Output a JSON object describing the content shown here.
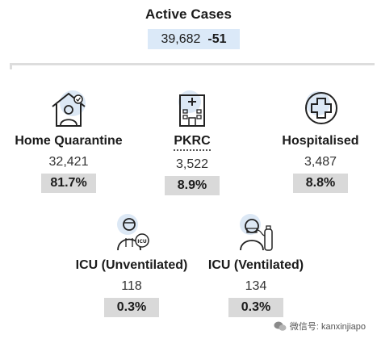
{
  "active": {
    "title": "Active Cases",
    "value": "39,682",
    "change": "-51"
  },
  "categories": [
    {
      "label": "Home Quarantine",
      "count": "32,421",
      "percent": "81.7%",
      "icon": "home-quarantine-icon"
    },
    {
      "label": "PKRC",
      "count": "3,522",
      "percent": "8.9%",
      "icon": "hospital-building-icon"
    },
    {
      "label": "Hospitalised",
      "count": "3,487",
      "percent": "8.8%",
      "icon": "medical-cross-icon"
    },
    {
      "label": "ICU (Unventilated)",
      "count": "118",
      "percent": "0.3%",
      "icon": "icu-doctor-icon"
    },
    {
      "label": "ICU (Ventilated)",
      "count": "134",
      "percent": "0.3%",
      "icon": "ventilated-patient-icon"
    }
  ],
  "watermark": {
    "text": "微信号: kanxinjiapo"
  },
  "colors": {
    "accent": "#dbe9f8",
    "pill": "#d9d9d9",
    "icon_bg": "#dce8f5"
  }
}
